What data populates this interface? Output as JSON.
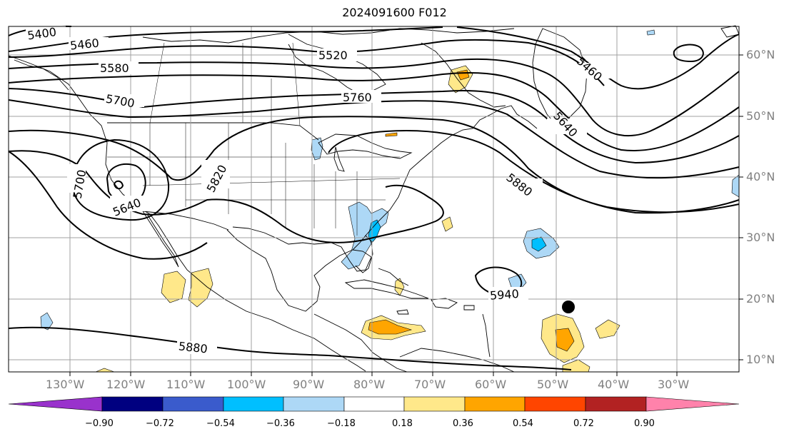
{
  "title": "2024091600 F012",
  "lon_labels": [
    "130°W",
    "120°W",
    "110°W",
    "100°W",
    "90°W",
    "80°W",
    "70°W",
    "60°W",
    "50°W",
    "40°W",
    "30°W"
  ],
  "lat_labels": [
    "60°N",
    "50°N",
    "40°N",
    "30°N",
    "20°N",
    "10°N"
  ],
  "contour_labels": [
    "5400",
    "5460",
    "5520",
    "5580",
    "5700",
    "5760",
    "5460",
    "5640",
    "5700",
    "5820",
    "5640",
    "5880",
    "5940",
    "5880"
  ],
  "colorbar": {
    "colors": [
      "#9932cc",
      "#000080",
      "#3a5bcc",
      "#00bfff",
      "#add8f6",
      "#ffffff",
      "#ffe88a",
      "#ffa500",
      "#ff4500",
      "#b22222",
      "#ff82ab"
    ],
    "tick_labels": [
      "−0.90",
      "−0.72",
      "−0.54",
      "−0.36",
      "−0.18",
      "0.18",
      "0.36",
      "0.54",
      "0.72",
      "0.90"
    ]
  },
  "colors": {
    "grid": "#a0a0a0",
    "coast": "#000000",
    "contour": "#000000",
    "light_blue": "#add8f6",
    "mid_blue": "#00bfff",
    "light_yellow": "#ffe88a",
    "orange": "#ffa500"
  }
}
